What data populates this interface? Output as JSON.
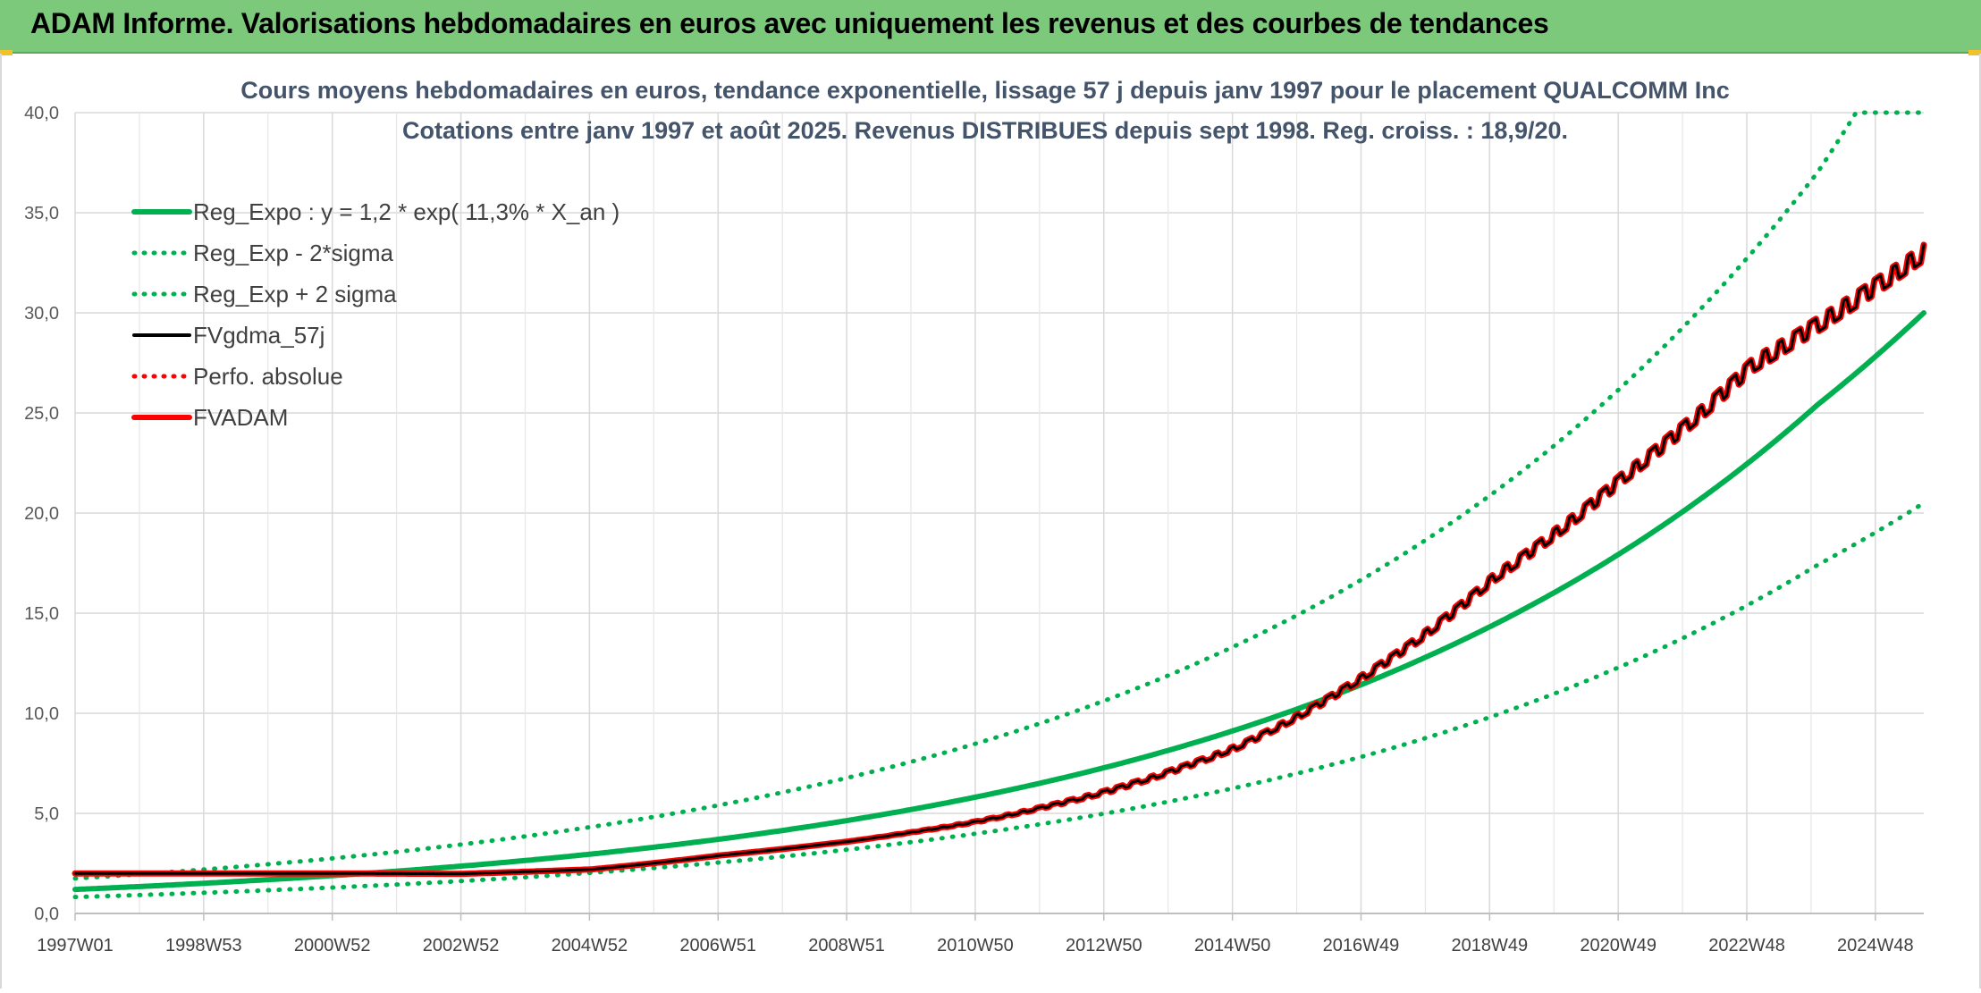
{
  "header": {
    "title": "ADAM Informe. Valorisations hebdomadaires en euros avec uniquement les revenus et des courbes de tendances"
  },
  "colors": {
    "header_bg": "#7dc97c",
    "reg_expo": "#00b050",
    "sigma_lines": "#00b050",
    "fvgdma": "#000000",
    "perfo": "#ff0000",
    "fvadam": "#ff0000"
  },
  "chart_data": {
    "type": "line",
    "title": "Cours moyens hebdomadaires en euros, tendance exponentielle, lissage 57 j depuis janv 1997 pour le placement QUALCOMM Inc",
    "subtitle": "Cotations entre janv 1997 et août 2025. Revenus DISTRIBUES depuis sept 1998. Reg. croiss. : 18,9/20.",
    "xlabel": "",
    "ylabel": "",
    "ylim": [
      0,
      40
    ],
    "yticks": [
      "0,0",
      "5,0",
      "10,0",
      "15,0",
      "20,0",
      "25,0",
      "30,0",
      "35,0",
      "40,0"
    ],
    "xticks": [
      "1997W01",
      "1998W53",
      "2000W52",
      "2002W52",
      "2004W52",
      "2006W51",
      "2008W51",
      "2010W50",
      "2012W50",
      "2014W50",
      "2016W49",
      "2018W49",
      "2020W49",
      "2022W48",
      "2024W48"
    ],
    "xlim_years": [
      1997.0,
      2025.65
    ],
    "grid": true,
    "legend_position": "top-left",
    "series": [
      {
        "name": "Reg_Expo : y = 1,2 * exp( 11,3% *  X_an )",
        "style": "solid-thick",
        "color": "#00b050",
        "x": [
          1997,
          2000,
          2003,
          2006,
          2009,
          2012,
          2015,
          2018,
          2021,
          2024,
          2025.65
        ],
        "y": [
          1.2,
          1.69,
          2.37,
          3.32,
          4.66,
          6.54,
          9.18,
          12.9,
          18.1,
          25.4,
          30.0
        ]
      },
      {
        "name": "Reg_Exp - 2*sigma",
        "style": "dotted",
        "color": "#00b050",
        "x": [
          1997,
          2000,
          2003,
          2006,
          2009,
          2012,
          2015,
          2018,
          2021,
          2024,
          2025.65
        ],
        "y": [
          0.82,
          1.16,
          1.62,
          2.28,
          3.2,
          4.48,
          6.29,
          8.83,
          12.4,
          17.4,
          20.5
        ]
      },
      {
        "name": "Reg_Exp + 2 sigma",
        "style": "dotted",
        "color": "#00b050",
        "x": [
          1997,
          2000,
          2003,
          2006,
          2009,
          2012,
          2015,
          2018,
          2021,
          2024,
          2024.6,
          2025.65
        ],
        "y": [
          1.75,
          2.46,
          3.45,
          4.84,
          6.8,
          9.54,
          13.4,
          18.8,
          26.4,
          37.0,
          40.0,
          40.0
        ]
      },
      {
        "name": "FVgdma_57j",
        "style": "solid-thin",
        "color": "#000000",
        "x": [
          1997,
          1999,
          2001,
          2003,
          2005,
          2007,
          2009,
          2011,
          2013,
          2015,
          2017,
          2019,
          2021,
          2023,
          2025.65
        ],
        "y": [
          2.0,
          2.0,
          2.0,
          1.98,
          2.2,
          2.9,
          3.6,
          4.6,
          6.1,
          8.3,
          11.9,
          16.8,
          21.8,
          27.4,
          33.0
        ]
      },
      {
        "name": "Perfo. absolue",
        "style": "dotted",
        "color": "#ff0000",
        "x": [
          1997,
          1999,
          2001,
          2003,
          2005,
          2007,
          2009,
          2011,
          2013,
          2015,
          2017,
          2019,
          2021,
          2023,
          2025.65
        ],
        "y": [
          2.0,
          2.0,
          2.0,
          1.98,
          2.2,
          2.9,
          3.6,
          4.6,
          6.1,
          8.3,
          11.9,
          16.8,
          21.8,
          27.4,
          33.0
        ]
      },
      {
        "name": "FVADAM",
        "style": "solid-thick",
        "color": "#ff0000",
        "x": [
          1997,
          1999,
          2001,
          2003,
          2005,
          2007,
          2009,
          2011,
          2013,
          2015,
          2017,
          2019,
          2021,
          2023,
          2025.65
        ],
        "y": [
          2.0,
          2.0,
          2.0,
          1.98,
          2.2,
          2.9,
          3.6,
          4.6,
          6.1,
          8.3,
          11.9,
          16.8,
          21.8,
          27.4,
          33.0
        ]
      }
    ]
  }
}
